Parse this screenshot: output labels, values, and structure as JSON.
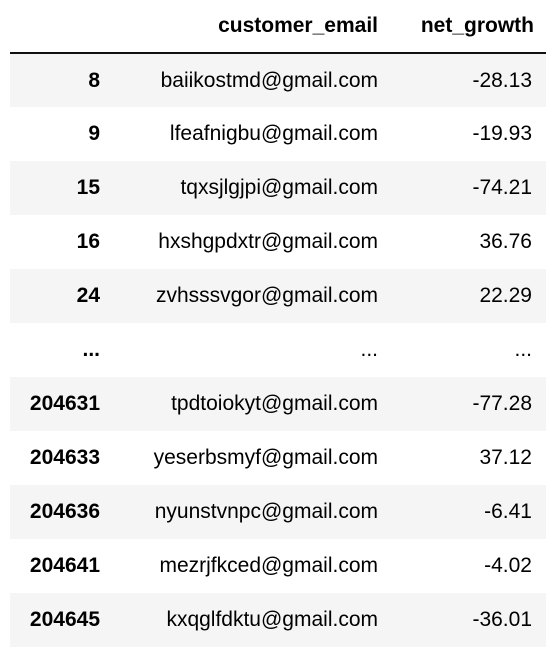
{
  "table": {
    "columns": [
      "",
      "customer_email",
      "net_growth"
    ],
    "rows": [
      {
        "index": "8",
        "customer_email": "baiikostmd@gmail.com",
        "net_growth": "-28.13"
      },
      {
        "index": "9",
        "customer_email": "lfeafnigbu@gmail.com",
        "net_growth": "-19.93"
      },
      {
        "index": "15",
        "customer_email": "tqxsjlgjpi@gmail.com",
        "net_growth": "-74.21"
      },
      {
        "index": "16",
        "customer_email": "hxshgpdxtr@gmail.com",
        "net_growth": "36.76"
      },
      {
        "index": "24",
        "customer_email": "zvhsssvgor@gmail.com",
        "net_growth": "22.29"
      },
      {
        "index": "...",
        "customer_email": "...",
        "net_growth": "..."
      },
      {
        "index": "204631",
        "customer_email": "tpdtoiokyt@gmail.com",
        "net_growth": "-77.28"
      },
      {
        "index": "204633",
        "customer_email": "yeserbsmyf@gmail.com",
        "net_growth": "37.12"
      },
      {
        "index": "204636",
        "customer_email": "nyunstvnpc@gmail.com",
        "net_growth": "-6.41"
      },
      {
        "index": "204641",
        "customer_email": "mezrjfkced@gmail.com",
        "net_growth": "-4.02"
      },
      {
        "index": "204645",
        "customer_email": "kxqglfdktu@gmail.com",
        "net_growth": "-36.01"
      }
    ]
  }
}
